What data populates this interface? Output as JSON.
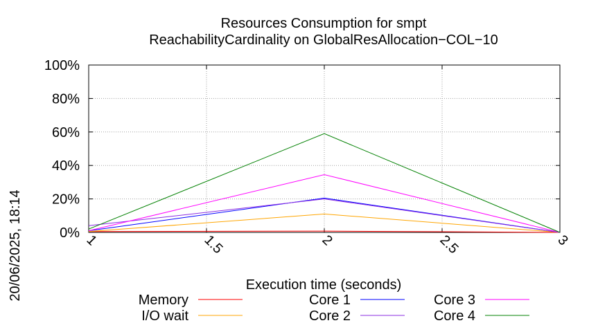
{
  "side_label": "20/06/2025, 18:14",
  "chart_data": {
    "type": "line",
    "title": [
      "Resources Consumption for smpt",
      "ReachabilityCardinality on GlobalResAllocation−COL−10"
    ],
    "xlabel": "Execution time (seconds)",
    "ylabel": "",
    "xlim": [
      1,
      3
    ],
    "ylim": [
      0,
      100
    ],
    "x_ticks": [
      {
        "value": 1,
        "label": "1"
      },
      {
        "value": 1.5,
        "label": "1.5"
      },
      {
        "value": 2,
        "label": "2"
      },
      {
        "value": 2.5,
        "label": "2.5"
      },
      {
        "value": 3,
        "label": "3"
      }
    ],
    "y_ticks": [
      {
        "value": 0,
        "label": "0%"
      },
      {
        "value": 20,
        "label": "20%"
      },
      {
        "value": 40,
        "label": "40%"
      },
      {
        "value": 60,
        "label": "60%"
      },
      {
        "value": 80,
        "label": "80%"
      },
      {
        "value": 100,
        "label": "100%"
      }
    ],
    "grid": true,
    "legend_position": "bottom",
    "x": [
      1,
      2,
      3
    ],
    "series": [
      {
        "name": "Memory",
        "color": "#ff0000",
        "values": [
          0.5,
          0.8,
          0
        ]
      },
      {
        "name": "I/O wait",
        "color": "#ffa500",
        "values": [
          0.5,
          11,
          0
        ]
      },
      {
        "name": "Core 1",
        "color": "#0000ff",
        "values": [
          1,
          20.5,
          0
        ]
      },
      {
        "name": "Core 2",
        "color": "#8a2be2",
        "values": [
          4,
          20,
          0
        ]
      },
      {
        "name": "Core 3",
        "color": "#ff00ff",
        "values": [
          1,
          34.5,
          0
        ]
      },
      {
        "name": "Core 4",
        "color": "#008000",
        "values": [
          2,
          59,
          0
        ]
      }
    ]
  }
}
